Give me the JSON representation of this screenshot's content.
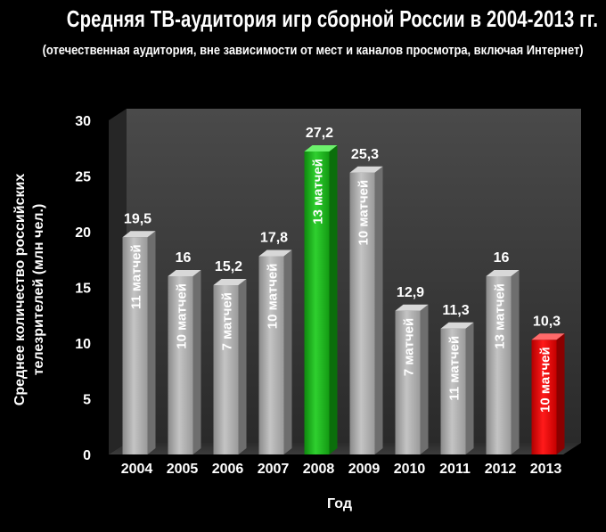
{
  "title": "Средняя ТВ-аудитория игр сборной России в 2004-2013 гг.",
  "subtitle": "(отечественная аудитория, вне зависимости от мест и каналов просмотра, включая Интернет)",
  "colors": {
    "default_bar": "#a8a8a8",
    "highlight_green": "#1db31d",
    "highlight_red": "#e00000",
    "background": "#000000"
  },
  "chart_data": {
    "type": "bar",
    "title": "Средняя ТВ-аудитория игр сборной России в 2004-2013 гг.",
    "subtitle": "(отечественная аудитория, вне зависимости от мест и каналов просмотра, включая Интернет)",
    "xlabel": "Год",
    "ylabel": "Среднее количество российских телезрителей (млн чел.)",
    "ylabel_lines": [
      "Среднее количество российских",
      "телезрителей (млн чел.)"
    ],
    "ylim": [
      0,
      30
    ],
    "yticks": [
      0,
      5,
      10,
      15,
      20,
      25,
      30
    ],
    "grid": false,
    "categories": [
      "2004",
      "2005",
      "2006",
      "2007",
      "2008",
      "2009",
      "2010",
      "2011",
      "2012",
      "2013"
    ],
    "values": [
      19.5,
      16,
      15.2,
      17.8,
      27.2,
      25.3,
      12.9,
      11.3,
      16,
      10.3
    ],
    "value_labels": [
      "19,5",
      "16",
      "15,2",
      "17,8",
      "27,2",
      "25,3",
      "12,9",
      "11,3",
      "16",
      "10,3"
    ],
    "bar_annotations": [
      "11 матчей",
      "10 матчей",
      "7 матчей",
      "10 матчей",
      "13 матчей",
      "10 матчей",
      "7 матчей",
      "11 матчей",
      "13 матчей",
      "10 матчей"
    ],
    "bar_colors": [
      "default",
      "default",
      "default",
      "default",
      "green",
      "default",
      "default",
      "default",
      "default",
      "red"
    ]
  }
}
